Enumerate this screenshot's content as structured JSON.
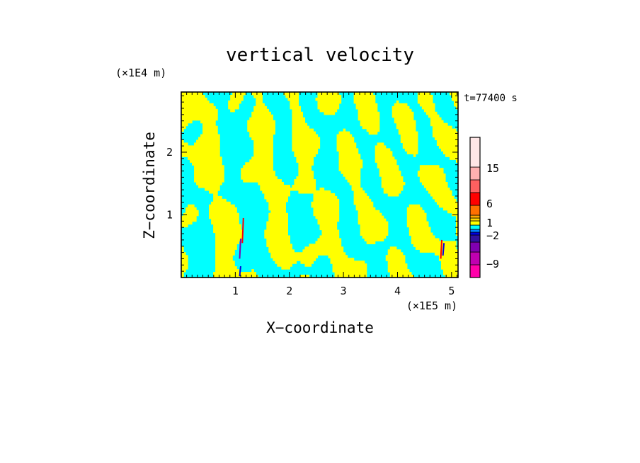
{
  "chart_data": {
    "type": "heatmap",
    "title": "vertical velocity",
    "time_label": "t=77400 s",
    "xlabel": "X−coordinate",
    "ylabel": "Z−coordinate",
    "x_unit": "(×1E5 m)",
    "y_unit": "(×1E4 m)",
    "xlim": [
      0,
      5.12
    ],
    "ylim": [
      0,
      2.96
    ],
    "x_ticks": [
      1,
      2,
      3,
      4,
      5
    ],
    "y_ticks": [
      1,
      2
    ],
    "x_tick_labels": [
      "1",
      "2",
      "3",
      "4",
      "5"
    ],
    "y_tick_labels": [
      "1",
      "2"
    ],
    "field_colors": {
      "positive": "#ffff00",
      "negative": "#00ffff"
    },
    "colorbar": {
      "bands": [
        {
          "color": "#ff00aa"
        },
        {
          "color": "#c000b0"
        },
        {
          "color": "#8000b0"
        },
        {
          "color": "#3010a0"
        },
        {
          "color": "#0000e0"
        },
        {
          "color": "#0080ff"
        },
        {
          "color": "#00ffff"
        },
        {
          "color": "#ffff00"
        },
        {
          "color": "#ffd700"
        },
        {
          "color": "#ffaa00"
        },
        {
          "color": "#ff7000"
        },
        {
          "color": "#ff0000"
        },
        {
          "color": "#ff6060"
        },
        {
          "color": "#ffb0b0"
        },
        {
          "color": "#ffe6e6"
        }
      ],
      "labels": [
        "15",
        "6",
        "1",
        "−2",
        "−9"
      ]
    },
    "streaks": [
      {
        "x": 1.13,
        "z0": 0.55,
        "z1": 0.95,
        "color": "#ff0000"
      },
      {
        "x": 1.08,
        "z0": 0.3,
        "z1": 0.62,
        "color": "#8000b0"
      },
      {
        "x": 4.8,
        "z0": 0.3,
        "z1": 0.6,
        "color": "#ff0000"
      },
      {
        "x": 4.84,
        "z0": 0.35,
        "z1": 0.55,
        "color": "#0000e0"
      },
      {
        "x": 1.08,
        "z0": 0.02,
        "z1": 0.18,
        "color": "#0000e0"
      }
    ]
  }
}
